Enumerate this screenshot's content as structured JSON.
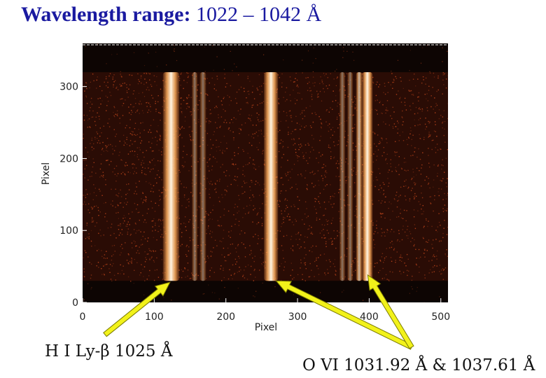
{
  "title": {
    "label": "Wavelength range:",
    "value": "1022 – 1042 Å",
    "color": "#1a1aa0"
  },
  "chart_data": {
    "type": "heatmap",
    "xlabel": "Pixel",
    "ylabel": "Pixel",
    "xlim": [
      0,
      510
    ],
    "ylim": [
      0,
      360
    ],
    "x_ticks": [
      0,
      100,
      200,
      300,
      400,
      500
    ],
    "y_ticks": [
      0,
      100,
      200,
      300
    ],
    "illuminated_rows": [
      30,
      320
    ],
    "lines": [
      {
        "x_range": [
          115,
          132
        ],
        "strength": "strong"
      },
      {
        "x_range": [
          154,
          159
        ],
        "strength": "faint"
      },
      {
        "x_range": [
          165,
          171
        ],
        "strength": "faint"
      },
      {
        "x_range": [
          256,
          270
        ],
        "strength": "strong"
      },
      {
        "x_range": [
          360,
          365
        ],
        "strength": "faint"
      },
      {
        "x_range": [
          371,
          376
        ],
        "strength": "faint"
      },
      {
        "x_range": [
          383,
          389
        ],
        "strength": "medium"
      },
      {
        "x_range": [
          393,
          402
        ],
        "strength": "strong"
      }
    ],
    "annotations": [
      {
        "text": "H I Ly-β 1025 Å",
        "points_to": [
          [
            122,
            28
          ]
        ]
      },
      {
        "text": "O VI 1031.92 Å & 1037.61 Å",
        "points_to": [
          [
            270,
            30
          ],
          [
            398,
            38
          ]
        ]
      }
    ],
    "colors": {
      "background": "#0d0503",
      "noise": "#c2471c",
      "line_core": "#fff6e6",
      "line_edge": "#ff9a45",
      "arrow": "#f2f21a",
      "arrow_edge": "#7a7a00"
    }
  }
}
